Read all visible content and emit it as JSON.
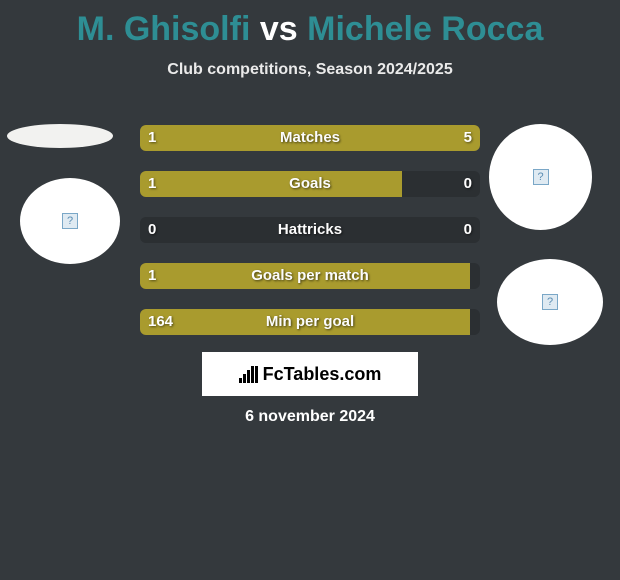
{
  "colors": {
    "background": "#34393d",
    "bar": "#a99b2e",
    "track": "#2b2f32",
    "title1": "#2e8e94",
    "title_vs": "#ffffff",
    "title2": "#2e8e94",
    "text": "#ffffff"
  },
  "header": {
    "player1": "M. Ghisolfi",
    "vs": "vs",
    "player2": "Michele Rocca",
    "subtitle": "Club competitions, Season 2024/2025"
  },
  "stats": [
    {
      "label": "Matches",
      "left_val": "1",
      "right_val": "5",
      "left_pct": 17,
      "right_pct": 83
    },
    {
      "label": "Goals",
      "left_val": "1",
      "right_val": "0",
      "left_pct": 77,
      "right_pct": 0
    },
    {
      "label": "Hattricks",
      "left_val": "0",
      "right_val": "0",
      "left_pct": 0,
      "right_pct": 0
    },
    {
      "label": "Goals per match",
      "left_val": "1",
      "right_val": "",
      "left_pct": 97,
      "right_pct": 0
    },
    {
      "label": "Min per goal",
      "left_val": "164",
      "right_val": "",
      "left_pct": 97,
      "right_pct": 0
    }
  ],
  "brand": "FcTables.com",
  "date": "6 november 2024",
  "placeholder_glyph": "?"
}
